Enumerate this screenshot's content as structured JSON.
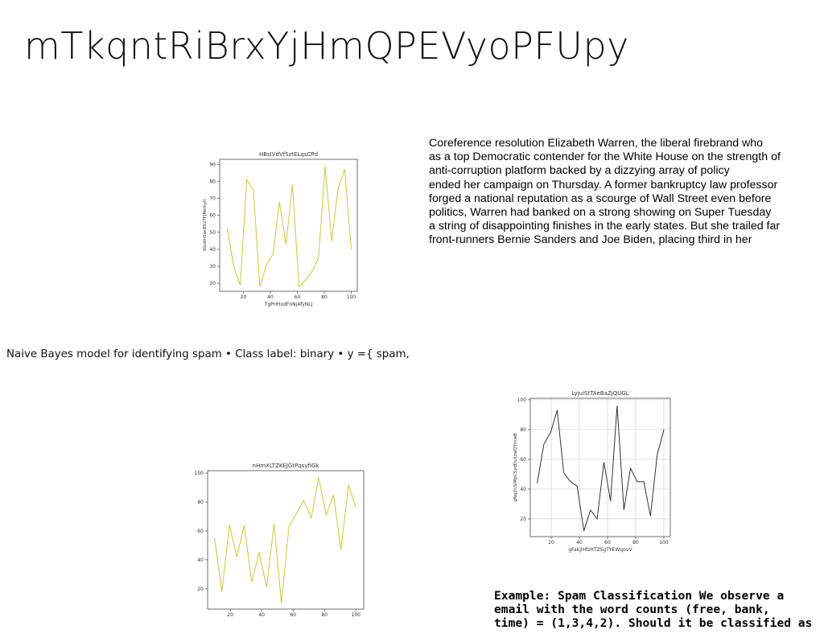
{
  "title": "mTkqntRiBrxYjHmQPEVyoPFUpy",
  "paragraph": [
    "Coreference resolution Elizabeth Warren, the liberal firebrand who",
    "as a top Democratic contender for the White House on the strength of",
    "anti-corruption platform backed by a dizzying array of policy",
    "ended her campaign on Thursday. A former bankruptcy law professor",
    "forged a national reputation as a scourge of Wall Street even before",
    "politics, Warren had banked on a strong showing on Super Tuesday",
    "a string of disappointing finishes in the early states. But she trailed far",
    "front-runners Bernie Sanders and Joe Biden, placing third in her"
  ],
  "naive_bayes": "Naive Bayes model for identifying spam • Class label: binary • y ={ spam,",
  "example": [
    "Example: Spam Classification We observe a",
    "email with the word counts (free, bank,",
    "time) = (1,3,4,2). Should it be classified as"
  ],
  "chart_data": [
    {
      "type": "line",
      "title": "HBsIVdVfSztELqsCPd",
      "x_label": "TgPrIHodFnNjAfyNLj",
      "y_label": "dIudmSwrEbzTFJRomyIl",
      "color": "#c5c93a",
      "grid": false,
      "x": [
        8,
        12.8,
        17.7,
        22.5,
        27.4,
        32.2,
        37.1,
        41.9,
        46.7,
        51.6,
        56.4,
        61.3,
        66.1,
        71,
        75.8,
        80.6,
        85.5,
        90.3,
        95.2,
        100
      ],
      "values": [
        52,
        30,
        19,
        81,
        75,
        18,
        31,
        37,
        68,
        43,
        78,
        18,
        22,
        27,
        35,
        89,
        45,
        76,
        87,
        40
      ],
      "xlim": [
        2.4,
        104.5
      ],
      "ylim": [
        15.3,
        93
      ],
      "xticks": [
        20,
        40,
        60,
        80,
        100
      ],
      "yticks": [
        20,
        30,
        40,
        50,
        60,
        70,
        80,
        90
      ]
    },
    {
      "type": "line",
      "title": "nHmXLTZKEJGtPqsyfiGk",
      "color": "#c5c93a",
      "grid": false,
      "x": [
        10,
        14.7,
        19.5,
        24.2,
        28.9,
        33.7,
        38.4,
        43.2,
        47.9,
        52.6,
        57.4,
        62.1,
        66.8,
        71.6,
        76.3,
        81.1,
        85.8,
        90.5,
        95.3,
        100
      ],
      "values": [
        55,
        18,
        64,
        42,
        64,
        25,
        45,
        21,
        65,
        10,
        63,
        72,
        81,
        69,
        97,
        71,
        85,
        47,
        92,
        76
      ],
      "xlim": [
        5.6,
        105
      ],
      "ylim": [
        6,
        101.7
      ],
      "xticks": [
        20,
        40,
        60,
        80,
        100
      ],
      "yticks": [
        20,
        40,
        60,
        80,
        100
      ]
    },
    {
      "type": "line",
      "title": "LyjuiStTAeBaZjQUGL",
      "x_label": "gFakjlHfzHTZSgTYEWqouV",
      "y_label": "gNqZnSiMpCSydDsXzwQYrnwB",
      "color": "#333333",
      "grid": true,
      "x": [
        10,
        14.7,
        19.5,
        24.2,
        28.9,
        33.7,
        38.4,
        43.2,
        47.9,
        52.6,
        57.4,
        62.1,
        66.8,
        71.6,
        76.3,
        81.1,
        85.8,
        90.5,
        95.3,
        100
      ],
      "values": [
        44,
        70,
        78,
        93,
        51,
        45,
        42,
        12,
        26,
        20,
        58,
        32,
        96,
        26,
        54,
        45,
        45,
        22,
        63,
        80
      ],
      "xlim": [
        5.1,
        104.6
      ],
      "ylim": [
        8.1,
        101
      ],
      "xticks": [
        20,
        40,
        60,
        80,
        100
      ],
      "yticks": [
        20,
        40,
        60,
        80,
        100
      ]
    }
  ]
}
